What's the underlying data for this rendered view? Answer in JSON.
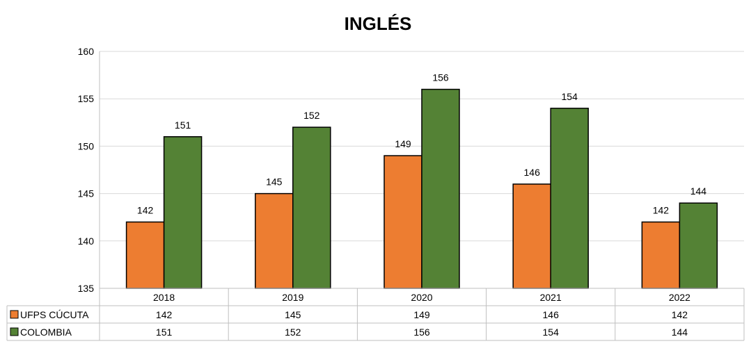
{
  "chart_data": {
    "type": "bar",
    "title": "INGLÉS",
    "categories": [
      "2018",
      "2019",
      "2020",
      "2021",
      "2022"
    ],
    "series": [
      {
        "name": "UFPS CÚCUTA",
        "values": [
          142,
          145,
          149,
          146,
          142
        ],
        "color": "#ED7D31"
      },
      {
        "name": "COLOMBIA",
        "values": [
          151,
          152,
          156,
          154,
          144
        ],
        "color": "#548235"
      }
    ],
    "ylim": [
      135,
      160
    ],
    "yticks": [
      135,
      140,
      145,
      150,
      155,
      160
    ],
    "grid": true,
    "legend": "data-table",
    "data_table": true
  }
}
